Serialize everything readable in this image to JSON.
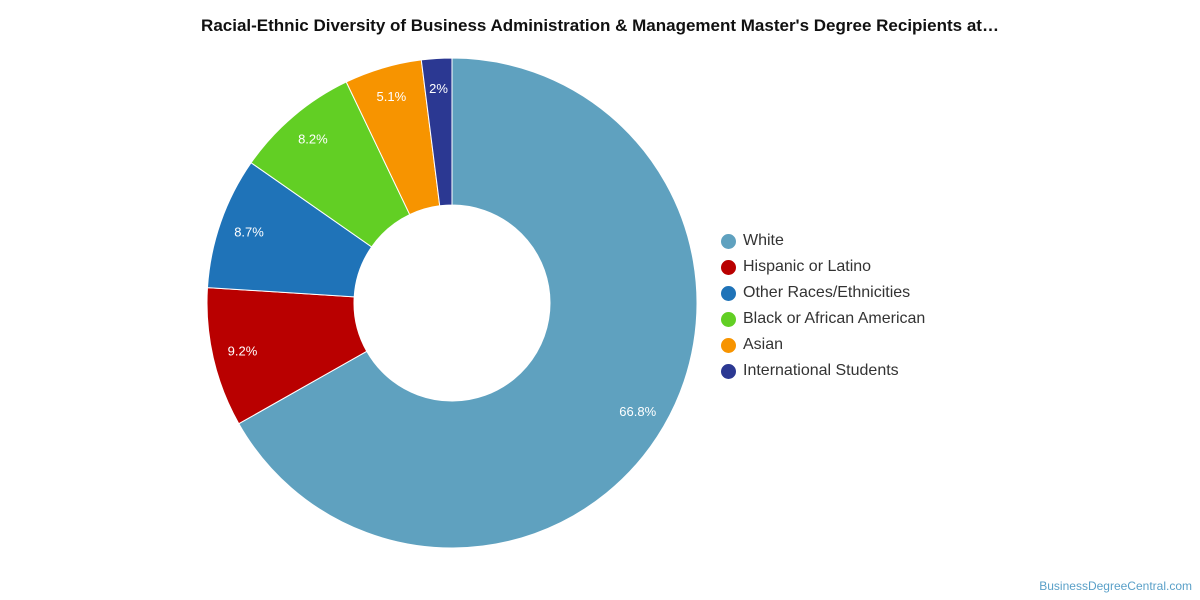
{
  "chart_data": {
    "type": "pie",
    "title": "Racial-Ethnic Diversity of Business Administration & Management Master's Degree Recipients at…",
    "categories": [
      "White",
      "Hispanic or Latino",
      "Other Races/Ethnicities",
      "Black or African American",
      "Asian",
      "International Students"
    ],
    "values": [
      66.8,
      9.2,
      8.7,
      8.2,
      5.1,
      2
    ],
    "data_labels": [
      "66.8%",
      "9.2%",
      "8.7%",
      "8.2%",
      "5.1%",
      "2%"
    ],
    "colors": [
      "#5fa1bf",
      "#b90000",
      "#1f73b8",
      "#62cf24",
      "#f79400",
      "#2b3892"
    ],
    "donut": true,
    "legend_position": "right"
  },
  "footer": {
    "credit": "BusinessDegreeCentral.com"
  }
}
